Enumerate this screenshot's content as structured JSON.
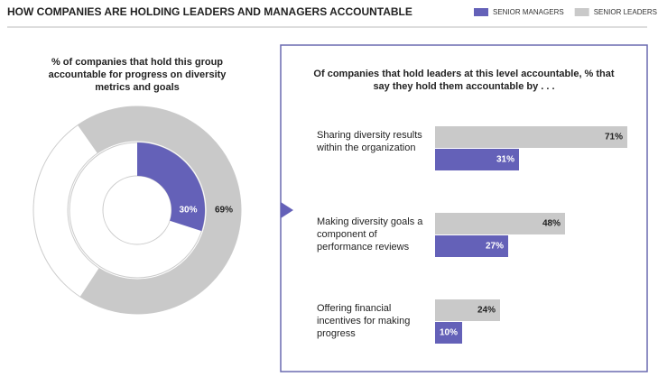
{
  "page_title": "HOW COMPANIES ARE HOLDING LEADERS AND MANAGERS ACCOUNTABLE",
  "chart_data": [
    {
      "type": "donut",
      "title": "% of companies that hold this group accountable for progress on diversity metrics and goals",
      "series": [
        {
          "color": "#6461b8",
          "values": [
            30
          ],
          "value_labels": [
            "30%"
          ]
        },
        {
          "color": "#c9c9c9",
          "values": [
            69
          ],
          "value_labels": [
            "69%"
          ]
        }
      ]
    },
    {
      "type": "bar",
      "title": "Of companies that hold leaders at this level accountable, % that say they hold them accountable by . . .",
      "categories": [
        "Sharing diversity results within the organization",
        "Making diversity goals a component of performance reviews",
        "Offering financial incentives for making progress"
      ],
      "xlim": [
        0,
        100
      ],
      "series": [
        {
          "name": "SENIOR MANAGERS",
          "color": "#6461b8",
          "values": [
            31,
            27,
            10
          ],
          "value_labels": [
            "31%",
            "27%",
            "10%"
          ]
        },
        {
          "name": "SENIOR LEADERS",
          "color": "#c9c9c9",
          "values": [
            71,
            48,
            24
          ],
          "value_labels": [
            "71%",
            "48%",
            "24%"
          ]
        }
      ]
    }
  ]
}
